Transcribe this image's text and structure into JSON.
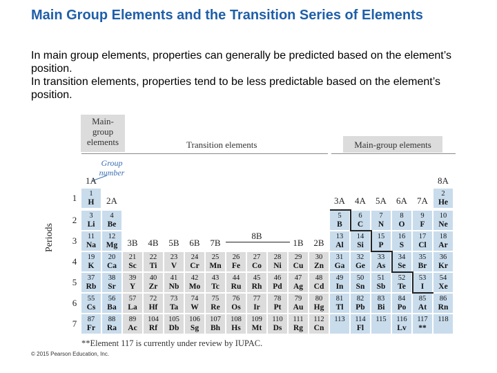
{
  "slide": {
    "title": "Main Group Elements and the Transition Series of Elements",
    "paragraphs": [
      "In main group elements, properties can generally be predicted based on the element’s position.",
      "In transition elements, properties tend to be less predictable based on the element’s position."
    ]
  },
  "figure": {
    "headers": {
      "left_main_group": "Main-group elements",
      "left_main_group_lines": [
        "Main-",
        "group",
        "elements"
      ],
      "transition": "Transition elements",
      "right_main_group": "Main-group elements",
      "group_number_label_lines": [
        "Group",
        "number"
      ]
    },
    "periods_label": "Periods",
    "period_numbers": [
      "1",
      "2",
      "3",
      "4",
      "5",
      "6",
      "7"
    ],
    "group_labels": [
      "1A",
      "2A",
      "3B",
      "4B",
      "5B",
      "6B",
      "7B",
      "8B",
      "1B",
      "2B",
      "3A",
      "4A",
      "5A",
      "6A",
      "7A",
      "8A"
    ],
    "elements": [
      {
        "n": "1",
        "s": "H"
      },
      {
        "n": "2",
        "s": "He"
      },
      {
        "n": "3",
        "s": "Li"
      },
      {
        "n": "4",
        "s": "Be"
      },
      {
        "n": "5",
        "s": "B"
      },
      {
        "n": "6",
        "s": "C"
      },
      {
        "n": "7",
        "s": "N"
      },
      {
        "n": "8",
        "s": "O"
      },
      {
        "n": "9",
        "s": "F"
      },
      {
        "n": "10",
        "s": "Ne"
      },
      {
        "n": "11",
        "s": "Na"
      },
      {
        "n": "12",
        "s": "Mg"
      },
      {
        "n": "13",
        "s": "Al"
      },
      {
        "n": "14",
        "s": "Si"
      },
      {
        "n": "15",
        "s": "P"
      },
      {
        "n": "16",
        "s": "S"
      },
      {
        "n": "17",
        "s": "Cl"
      },
      {
        "n": "18",
        "s": "Ar"
      },
      {
        "n": "19",
        "s": "K"
      },
      {
        "n": "20",
        "s": "Ca"
      },
      {
        "n": "21",
        "s": "Sc"
      },
      {
        "n": "22",
        "s": "Ti"
      },
      {
        "n": "23",
        "s": "V"
      },
      {
        "n": "24",
        "s": "Cr"
      },
      {
        "n": "25",
        "s": "Mn"
      },
      {
        "n": "26",
        "s": "Fe"
      },
      {
        "n": "27",
        "s": "Co"
      },
      {
        "n": "28",
        "s": "Ni"
      },
      {
        "n": "29",
        "s": "Cu"
      },
      {
        "n": "30",
        "s": "Zn"
      },
      {
        "n": "31",
        "s": "Ga"
      },
      {
        "n": "32",
        "s": "Ge"
      },
      {
        "n": "33",
        "s": "As"
      },
      {
        "n": "34",
        "s": "Se"
      },
      {
        "n": "35",
        "s": "Br"
      },
      {
        "n": "36",
        "s": "Kr"
      },
      {
        "n": "37",
        "s": "Rb"
      },
      {
        "n": "38",
        "s": "Sr"
      },
      {
        "n": "39",
        "s": "Y"
      },
      {
        "n": "40",
        "s": "Zr"
      },
      {
        "n": "41",
        "s": "Nb"
      },
      {
        "n": "42",
        "s": "Mo"
      },
      {
        "n": "43",
        "s": "Tc"
      },
      {
        "n": "44",
        "s": "Ru"
      },
      {
        "n": "45",
        "s": "Rh"
      },
      {
        "n": "46",
        "s": "Pd"
      },
      {
        "n": "47",
        "s": "Ag"
      },
      {
        "n": "48",
        "s": "Cd"
      },
      {
        "n": "49",
        "s": "In"
      },
      {
        "n": "50",
        "s": "Sn"
      },
      {
        "n": "51",
        "s": "Sb"
      },
      {
        "n": "52",
        "s": "Te"
      },
      {
        "n": "53",
        "s": "I"
      },
      {
        "n": "54",
        "s": "Xe"
      },
      {
        "n": "55",
        "s": "Cs"
      },
      {
        "n": "56",
        "s": "Ba"
      },
      {
        "n": "57",
        "s": "La"
      },
      {
        "n": "72",
        "s": "Hf"
      },
      {
        "n": "73",
        "s": "Ta"
      },
      {
        "n": "74",
        "s": "W"
      },
      {
        "n": "75",
        "s": "Re"
      },
      {
        "n": "76",
        "s": "Os"
      },
      {
        "n": "77",
        "s": "Ir"
      },
      {
        "n": "78",
        "s": "Pt"
      },
      {
        "n": "79",
        "s": "Au"
      },
      {
        "n": "80",
        "s": "Hg"
      },
      {
        "n": "81",
        "s": "Tl"
      },
      {
        "n": "82",
        "s": "Pb"
      },
      {
        "n": "83",
        "s": "Bi"
      },
      {
        "n": "84",
        "s": "Po"
      },
      {
        "n": "85",
        "s": "At"
      },
      {
        "n": "86",
        "s": "Rn"
      },
      {
        "n": "87",
        "s": "Fr"
      },
      {
        "n": "88",
        "s": "Ra"
      },
      {
        "n": "89",
        "s": "Ac"
      },
      {
        "n": "104",
        "s": "Rf"
      },
      {
        "n": "105",
        "s": "Db"
      },
      {
        "n": "106",
        "s": "Sg"
      },
      {
        "n": "107",
        "s": "Bh"
      },
      {
        "n": "108",
        "s": "Hs"
      },
      {
        "n": "109",
        "s": "Mt"
      },
      {
        "n": "110",
        "s": "Ds"
      },
      {
        "n": "111",
        "s": "Rg"
      },
      {
        "n": "112",
        "s": "Cn"
      },
      {
        "n": "113",
        "s": ""
      },
      {
        "n": "114",
        "s": "Fl"
      },
      {
        "n": "115",
        "s": ""
      },
      {
        "n": "116",
        "s": "Lv"
      },
      {
        "n": "117",
        "s": "**"
      },
      {
        "n": "118",
        "s": ""
      }
    ],
    "colors": {
      "main_group": "#c9dcec",
      "transition": "#dcdcdc",
      "title": "#1f5fa8",
      "group_number_label": "#3a6fb0"
    },
    "footnote": "**Element 117 is currently under review by IUPAC.",
    "copyright": "© 2015 Pearson Education, Inc."
  }
}
